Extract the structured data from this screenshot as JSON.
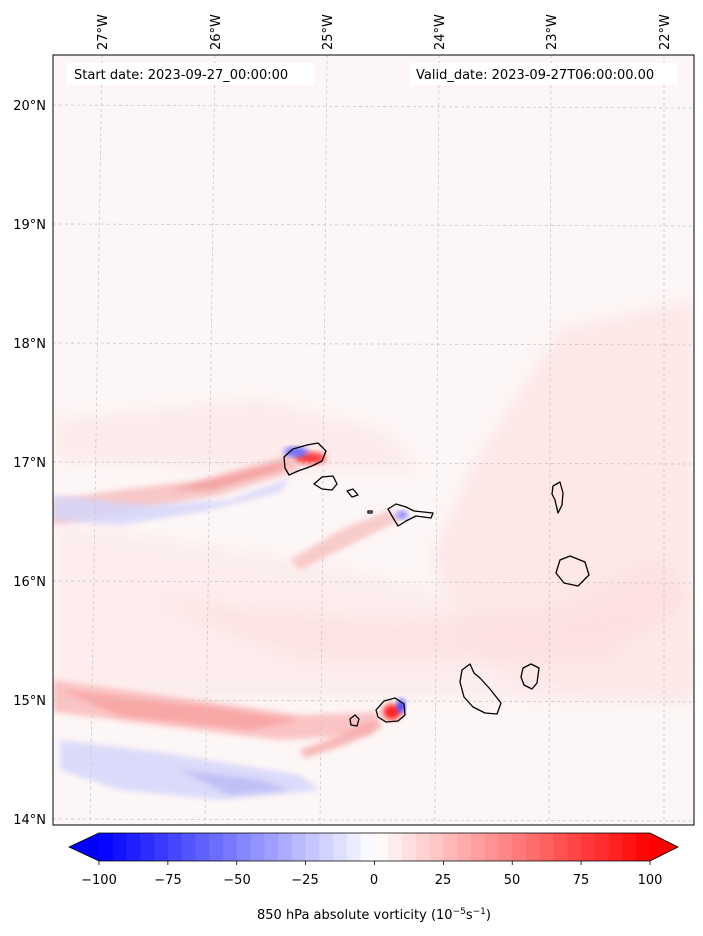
{
  "map": {
    "lat_labels": [
      "20°N",
      "19°N",
      "18°N",
      "17°N",
      "16°N",
      "15°N",
      "14°N"
    ],
    "lon_labels": [
      "27°W",
      "26°W",
      "25°W",
      "24°W",
      "23°W",
      "22°W"
    ],
    "start_date": "Start date: 2023-09-27_00:00:00",
    "valid_date": "Valid_date: 2023-09-27T06:00:00.00",
    "gridlines": true
  },
  "colorbar": {
    "ticks": [
      "−100",
      "−75",
      "−50",
      "−25",
      "0",
      "25",
      "50",
      "75",
      "100"
    ],
    "tick_values": [
      -100,
      -75,
      -50,
      -25,
      0,
      25,
      50,
      75,
      100
    ],
    "label_main": "850 hPa absolute vorticity (10",
    "label_exp1": "−5",
    "label_mid": "s",
    "label_exp2": "−1",
    "label_end": ")",
    "colormap": "bwr",
    "low_color": "#0000ff",
    "mid_color": "#ffffff",
    "high_color": "#ff0000",
    "range": [
      -100,
      100
    ],
    "extend": "both"
  },
  "colors": {
    "coastline": "#000000",
    "gridline": "#c8c8c8",
    "background_field": "#fdf5f5"
  }
}
